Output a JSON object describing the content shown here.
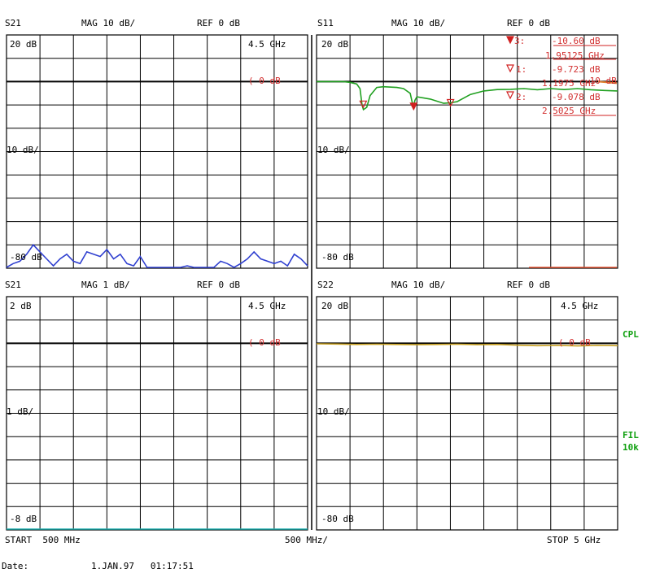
{
  "chart_data": [
    {
      "type": "line",
      "param": "S21",
      "format": "MAG 10 dB/",
      "ref": "REF 0 dB",
      "top_label": "20 dB",
      "mid_label": "10 dB/",
      "bottom_label": "-80 dB",
      "freq_label": "4.5 GHz",
      "ref_marker": "0 dB",
      "ylim": [
        -80,
        20
      ],
      "series": [
        {
          "color": "#3040d0",
          "x": [
            0.5,
            0.6,
            0.7,
            0.8,
            0.9,
            1.0,
            1.1,
            1.2,
            1.3,
            1.4,
            1.5,
            1.6,
            1.7,
            1.8,
            1.9,
            2.0,
            2.1,
            2.2,
            2.3,
            2.4,
            2.5,
            2.6,
            2.7,
            2.8,
            2.9,
            3.0,
            3.1,
            3.2,
            3.3,
            3.4,
            3.5,
            3.6,
            3.7,
            3.8,
            3.9,
            4.0,
            4.1,
            4.2,
            4.3,
            4.4,
            4.5,
            4.6,
            4.7,
            4.8,
            4.9,
            5.0
          ],
          "y": [
            -80,
            -78,
            -77,
            -74,
            -70,
            -73,
            -76,
            -79,
            -76,
            -74,
            -77,
            -78,
            -73,
            -74,
            -75,
            -72,
            -76,
            -74,
            -78,
            -79,
            -75,
            -80,
            -80,
            -80,
            -80,
            -80,
            -80,
            -79,
            -80,
            -80,
            -80,
            -80,
            -77,
            -78,
            -80,
            -78,
            -76,
            -73,
            -76,
            -77,
            -78,
            -77,
            -79,
            -74,
            -76,
            -79
          ]
        }
      ]
    },
    {
      "type": "line",
      "param": "S11",
      "format": "MAG 10 dB/",
      "ref": "REF 0 dB",
      "top_label": "20 dB",
      "mid_label": "10 dB/",
      "bottom_label": "-80 dB",
      "ylim": [
        -80,
        20
      ],
      "series": [
        {
          "color": "#20a020",
          "x": [
            0.5,
            0.7,
            0.9,
            1.0,
            1.1,
            1.15,
            1.18,
            1.2,
            1.25,
            1.3,
            1.4,
            1.5,
            1.7,
            1.8,
            1.9,
            1.93,
            1.95,
            1.97,
            2.0,
            2.2,
            2.4,
            2.5,
            2.6,
            2.8,
            3.0,
            3.2,
            3.4,
            3.6,
            3.8,
            4.0,
            4.2,
            4.4,
            4.6,
            4.8,
            5.0
          ],
          "y": [
            0,
            0,
            0,
            -0.3,
            -1,
            -3,
            -10,
            -12,
            -11,
            -6,
            -2.5,
            -2.2,
            -2.5,
            -3,
            -5,
            -9,
            -10.6,
            -8,
            -6.5,
            -7.5,
            -9.3,
            -9.1,
            -8.6,
            -5.5,
            -4,
            -3.4,
            -3.3,
            -3,
            -3.5,
            -3,
            -3.4,
            -3,
            -3.5,
            -3.8,
            -4
          ]
        }
      ],
      "markers": [
        {
          "id": "3:",
          "value": "-10.60 dB",
          "freq": "1.95125 GHz"
        },
        {
          "id": "1:",
          "value": "-9.723 dB",
          "freq": "1.1975 GHz"
        },
        {
          "id": "2:",
          "value": "-9.078 dB",
          "freq": "2.5025 GHz"
        }
      ],
      "marker_extra": "-10 dB"
    },
    {
      "type": "line",
      "param": "S21",
      "format": "MAG 1 dB/",
      "ref": "REF 0 dB",
      "top_label": "2 dB",
      "mid_label": "1 dB/",
      "bottom_label": "-8 dB",
      "freq_label": "4.5 GHz",
      "ref_marker": "0 dB",
      "ylim": [
        -8,
        2
      ],
      "series": [
        {
          "color": "#20b0b0",
          "x": [
            0.5,
            5.0
          ],
          "y": [
            -8,
            -8
          ]
        }
      ]
    },
    {
      "type": "line",
      "param": "S22",
      "format": "MAG 10 dB/",
      "ref": "REF 0 dB",
      "top_label": "20 dB",
      "mid_label": "10 dB/",
      "bottom_label": "-80 dB",
      "freq_label": "4.5 GHz",
      "ref_marker": "0 dB",
      "ylim": [
        -80,
        20
      ],
      "series": [
        {
          "color": "#c8a020",
          "x": [
            0.5,
            0.8,
            1.1,
            1.4,
            1.7,
            2.0,
            2.3,
            2.6,
            2.9,
            3.2,
            3.5,
            3.8,
            4.1,
            4.4,
            4.7,
            5.0
          ],
          "y": [
            -0.2,
            -0.3,
            -0.5,
            -0.4,
            -0.5,
            -0.6,
            -0.5,
            -0.4,
            -0.6,
            -0.5,
            -0.8,
            -1.0,
            -0.9,
            -1.1,
            -0.9,
            -1.0
          ]
        }
      ]
    }
  ],
  "footer": {
    "start": "START  500 MHz",
    "span": "500 MHz/",
    "stop": "STOP 5 GHz",
    "date_label": "Date:",
    "date_value": "1.JAN.97   01:17:51"
  },
  "side": {
    "cpl": "CPL",
    "fil": "FIL",
    "fil2": "10k"
  }
}
